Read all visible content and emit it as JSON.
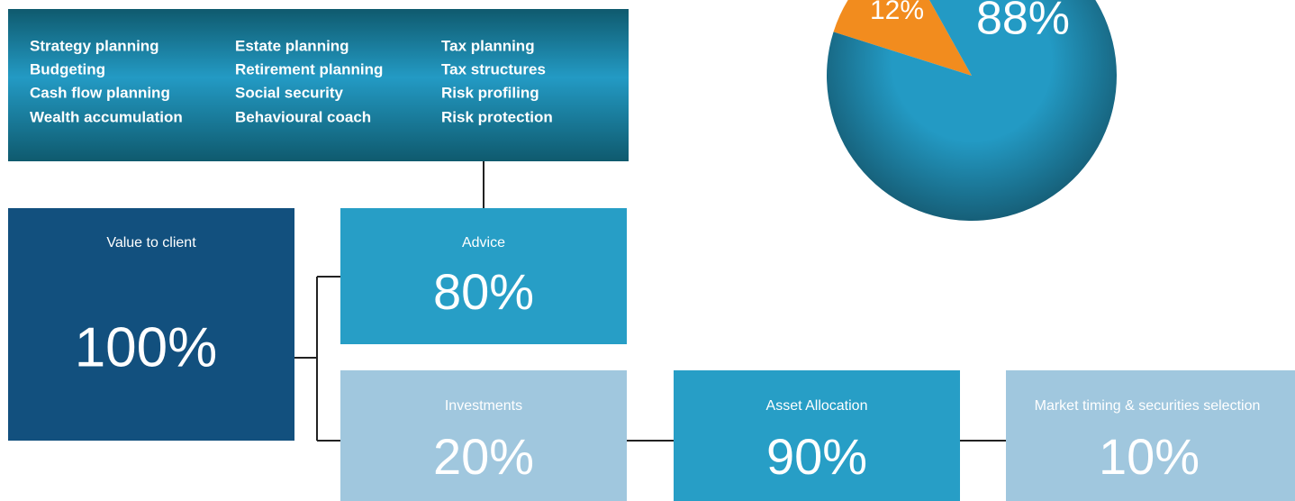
{
  "services": [
    [
      "Strategy planning",
      "Budgeting",
      "Cash flow planning",
      "Wealth accumulation"
    ],
    [
      "Estate planning",
      "Retirement planning",
      "Social security",
      "Behavioural coach"
    ],
    [
      "Tax planning",
      "Tax structures",
      "Risk profiling",
      "Risk protection"
    ]
  ],
  "nodes": [
    {
      "label": "Value to client",
      "value": "100%"
    },
    {
      "label": "Advice",
      "value": "80%"
    },
    {
      "label": "Investments",
      "value": "20%"
    },
    {
      "label": "Asset Allocation",
      "value": "90%"
    },
    {
      "label": "Market timing & securities selection",
      "value": "10%"
    }
  ],
  "pie": {
    "values": [
      12,
      88
    ],
    "labels": [
      "12%",
      "88%"
    ],
    "colors": [
      "#f28c1e",
      "#239ac4"
    ]
  }
}
